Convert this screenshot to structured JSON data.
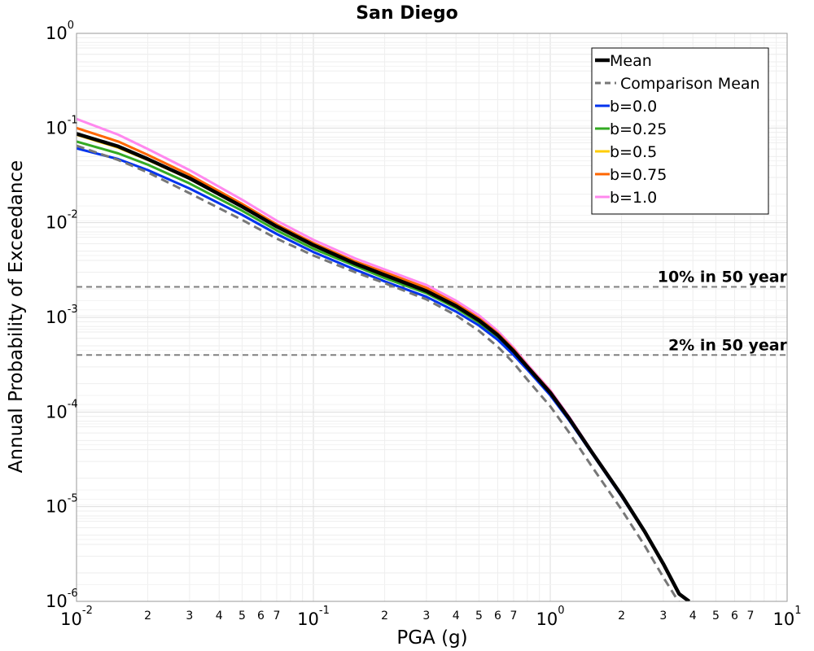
{
  "chart_data": {
    "type": "line",
    "title": "San Diego",
    "xlabel": "PGA (g)",
    "ylabel": "Annual Probability of Exceedance",
    "xscale": "log",
    "yscale": "log",
    "xlim": [
      0.01,
      10
    ],
    "ylim": [
      1e-06,
      1
    ],
    "grid": true,
    "legend_position": "top-right",
    "x_ticks": [
      {
        "base": "10",
        "exp": "-2",
        "value": 0.01
      },
      {
        "base": "10",
        "exp": "-1",
        "value": 0.1
      },
      {
        "base": "10",
        "exp": "0",
        "value": 1
      },
      {
        "base": "10",
        "exp": "1",
        "value": 10
      }
    ],
    "x_minor_ticks": [
      "2",
      "3",
      "4",
      "5",
      "6",
      "7"
    ],
    "y_ticks": [
      {
        "base": "10",
        "exp": "0",
        "value": 1
      },
      {
        "base": "10",
        "exp": "-1",
        "value": 0.1
      },
      {
        "base": "10",
        "exp": "-2",
        "value": 0.01
      },
      {
        "base": "10",
        "exp": "-3",
        "value": 0.001
      },
      {
        "base": "10",
        "exp": "-4",
        "value": 0.0001
      },
      {
        "base": "10",
        "exp": "-5",
        "value": 1e-05
      },
      {
        "base": "10",
        "exp": "-6",
        "value": 1e-06
      }
    ],
    "reference_lines": [
      {
        "label": "10% in 50 year",
        "y": 0.0021,
        "color": "#808080"
      },
      {
        "label": "2% in 50 year",
        "y": 0.0004,
        "color": "#808080"
      }
    ],
    "series": [
      {
        "name": "b=1.0",
        "color": "#ff88ee",
        "style": "solid",
        "points": [
          [
            0.01,
            0.125
          ],
          [
            0.015,
            0.085
          ],
          [
            0.02,
            0.06
          ],
          [
            0.03,
            0.036
          ],
          [
            0.05,
            0.0175
          ],
          [
            0.07,
            0.0105
          ],
          [
            0.1,
            0.0066
          ],
          [
            0.15,
            0.0042
          ],
          [
            0.2,
            0.0032
          ],
          [
            0.3,
            0.0022
          ],
          [
            0.4,
            0.0015
          ],
          [
            0.5,
            0.00105
          ],
          [
            0.6,
            0.00072
          ],
          [
            0.7,
            0.00048
          ],
          [
            0.8,
            0.00032
          ],
          [
            1.0,
            0.00017
          ],
          [
            1.2,
            9e-05
          ],
          [
            1.5,
            3.85e-05
          ],
          [
            2.0,
            1.35e-05
          ],
          [
            2.5,
            5.6e-06
          ],
          [
            3.0,
            2.5e-06
          ],
          [
            3.5,
            1.2e-06
          ],
          [
            3.86,
            1e-06
          ]
        ]
      },
      {
        "name": "b=0.75",
        "color": "#ff6600",
        "style": "solid",
        "points": [
          [
            0.01,
            0.1
          ],
          [
            0.015,
            0.072
          ],
          [
            0.02,
            0.052
          ],
          [
            0.03,
            0.032
          ],
          [
            0.05,
            0.0158
          ],
          [
            0.07,
            0.0096
          ],
          [
            0.1,
            0.0061
          ],
          [
            0.15,
            0.0039
          ],
          [
            0.2,
            0.003
          ],
          [
            0.3,
            0.00205
          ],
          [
            0.4,
            0.0014
          ],
          [
            0.5,
            0.00098
          ],
          [
            0.6,
            0.00068
          ],
          [
            0.7,
            0.00046
          ],
          [
            0.8,
            0.00031
          ],
          [
            1.0,
            0.000165
          ],
          [
            1.2,
            8.8e-05
          ],
          [
            1.5,
            3.8e-05
          ],
          [
            2.0,
            1.33e-05
          ],
          [
            2.5,
            5.5e-06
          ],
          [
            3.0,
            2.5e-06
          ],
          [
            3.5,
            1.2e-06
          ],
          [
            3.86,
            1e-06
          ]
        ]
      },
      {
        "name": "b=0.5",
        "color": "#ffcc00",
        "style": "solid",
        "points": [
          [
            0.01,
            0.085
          ],
          [
            0.015,
            0.062
          ],
          [
            0.02,
            0.046
          ],
          [
            0.03,
            0.029
          ],
          [
            0.05,
            0.0146
          ],
          [
            0.07,
            0.009
          ],
          [
            0.1,
            0.0057
          ],
          [
            0.15,
            0.0037
          ],
          [
            0.2,
            0.0028
          ],
          [
            0.3,
            0.0019
          ],
          [
            0.4,
            0.00132
          ],
          [
            0.5,
            0.00093
          ],
          [
            0.6,
            0.00065
          ],
          [
            0.7,
            0.00044
          ],
          [
            0.8,
            0.0003
          ],
          [
            1.0,
            0.00016
          ],
          [
            1.2,
            8.6e-05
          ],
          [
            1.5,
            3.75e-05
          ],
          [
            2.0,
            1.32e-05
          ],
          [
            2.5,
            5.5e-06
          ],
          [
            3.0,
            2.5e-06
          ],
          [
            3.5,
            1.2e-06
          ],
          [
            3.86,
            1e-06
          ]
        ]
      },
      {
        "name": "b=0.25",
        "color": "#33aa22",
        "style": "solid",
        "points": [
          [
            0.01,
            0.072
          ],
          [
            0.015,
            0.054
          ],
          [
            0.02,
            0.041
          ],
          [
            0.03,
            0.026
          ],
          [
            0.05,
            0.0134
          ],
          [
            0.07,
            0.0083
          ],
          [
            0.1,
            0.0053
          ],
          [
            0.15,
            0.0035
          ],
          [
            0.2,
            0.0026
          ],
          [
            0.3,
            0.0018
          ],
          [
            0.4,
            0.00125
          ],
          [
            0.5,
            0.00088
          ],
          [
            0.6,
            0.00062
          ],
          [
            0.7,
            0.00042
          ],
          [
            0.8,
            0.00029
          ],
          [
            1.0,
            0.000155
          ],
          [
            1.2,
            8.4e-05
          ],
          [
            1.5,
            3.7e-05
          ],
          [
            2.0,
            1.3e-05
          ],
          [
            2.5,
            5.5e-06
          ],
          [
            3.0,
            2.5e-06
          ],
          [
            3.5,
            1.2e-06
          ],
          [
            3.86,
            1e-06
          ]
        ]
      },
      {
        "name": "b=0.0",
        "color": "#0033ee",
        "style": "solid",
        "points": [
          [
            0.01,
            0.061
          ],
          [
            0.015,
            0.047
          ],
          [
            0.02,
            0.036
          ],
          [
            0.03,
            0.023
          ],
          [
            0.05,
            0.0121
          ],
          [
            0.07,
            0.0076
          ],
          [
            0.1,
            0.0049
          ],
          [
            0.15,
            0.0032
          ],
          [
            0.2,
            0.0024
          ],
          [
            0.3,
            0.00165
          ],
          [
            0.4,
            0.00115
          ],
          [
            0.5,
            0.00082
          ],
          [
            0.6,
            0.00058
          ],
          [
            0.7,
            0.0004
          ],
          [
            0.8,
            0.00028
          ],
          [
            1.0,
            0.00015
          ],
          [
            1.2,
            8.2e-05
          ],
          [
            1.5,
            3.65e-05
          ],
          [
            2.0,
            1.28e-05
          ],
          [
            2.5,
            5.4e-06
          ],
          [
            3.0,
            2.5e-06
          ],
          [
            3.5,
            1.2e-06
          ],
          [
            3.86,
            1e-06
          ]
        ]
      },
      {
        "name": "Mean",
        "color": "#000000",
        "style": "solid-thick",
        "points": [
          [
            0.01,
            0.087
          ],
          [
            0.015,
            0.064
          ],
          [
            0.02,
            0.047
          ],
          [
            0.03,
            0.0295
          ],
          [
            0.05,
            0.0148
          ],
          [
            0.07,
            0.0091
          ],
          [
            0.1,
            0.0058
          ],
          [
            0.15,
            0.0037
          ],
          [
            0.2,
            0.0028
          ],
          [
            0.3,
            0.0019
          ],
          [
            0.4,
            0.00132
          ],
          [
            0.5,
            0.00093
          ],
          [
            0.6,
            0.00065
          ],
          [
            0.7,
            0.00044
          ],
          [
            0.8,
            0.0003
          ],
          [
            1.0,
            0.00016
          ],
          [
            1.2,
            8.6e-05
          ],
          [
            1.5,
            3.75e-05
          ],
          [
            2.0,
            1.32e-05
          ],
          [
            2.5,
            5.5e-06
          ],
          [
            3.0,
            2.5e-06
          ],
          [
            3.5,
            1.2e-06
          ],
          [
            3.86,
            1e-06
          ]
        ]
      },
      {
        "name": "Comparison Mean",
        "color": "#777777",
        "style": "dashed",
        "points": [
          [
            0.01,
            0.065
          ],
          [
            0.015,
            0.046
          ],
          [
            0.02,
            0.034
          ],
          [
            0.03,
            0.0205
          ],
          [
            0.05,
            0.0107
          ],
          [
            0.07,
            0.0068
          ],
          [
            0.1,
            0.0045
          ],
          [
            0.15,
            0.003
          ],
          [
            0.2,
            0.0023
          ],
          [
            0.3,
            0.00155
          ],
          [
            0.4,
            0.00105
          ],
          [
            0.5,
            0.00072
          ],
          [
            0.6,
            0.00049
          ],
          [
            0.7,
            0.00033
          ],
          [
            0.8,
            0.00022
          ],
          [
            1.0,
            0.000115
          ],
          [
            1.2,
            6.1e-05
          ],
          [
            1.5,
            2.65e-05
          ],
          [
            2.0,
            9.3e-06
          ],
          [
            2.5,
            3.9e-06
          ],
          [
            3.0,
            1.8e-06
          ],
          [
            3.5,
            9.7e-07
          ],
          [
            3.7,
            8e-07
          ]
        ]
      }
    ],
    "legend": [
      {
        "label": "Mean",
        "color": "#000000",
        "style": "solid-thick"
      },
      {
        "label": "Comparison Mean",
        "color": "#777777",
        "style": "dashed"
      },
      {
        "label": "b=0.0",
        "color": "#0033ee",
        "style": "solid"
      },
      {
        "label": "b=0.25",
        "color": "#33aa22",
        "style": "solid"
      },
      {
        "label": "b=0.5",
        "color": "#ffcc00",
        "style": "solid"
      },
      {
        "label": "b=0.75",
        "color": "#ff6600",
        "style": "solid"
      },
      {
        "label": "b=1.0",
        "color": "#ff88ee",
        "style": "solid"
      }
    ]
  }
}
